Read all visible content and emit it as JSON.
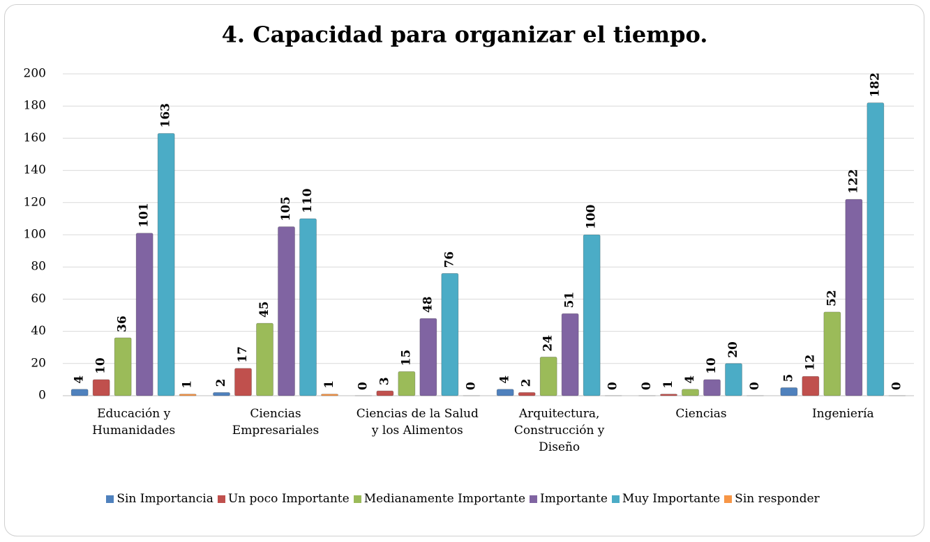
{
  "chart_data": {
    "type": "bar",
    "title": "4. Capacidad para organizar el tiempo.",
    "categories": [
      "Educación y Humanidades",
      "Ciencias Empresariales",
      "Ciencias de la Salud y los Alimentos",
      "Arquitectura, Construcción y Diseño",
      "Ciencias",
      "Ingeniería"
    ],
    "series": [
      {
        "name": "Sin Importancia",
        "color": "#4f81bd",
        "values": [
          4,
          2,
          0,
          4,
          0,
          5
        ]
      },
      {
        "name": "Un poco Importante",
        "color": "#c0504d",
        "values": [
          10,
          17,
          3,
          2,
          1,
          12
        ]
      },
      {
        "name": "Medianamente Importante",
        "color": "#9bbb59",
        "values": [
          36,
          45,
          15,
          24,
          4,
          52
        ]
      },
      {
        "name": "Importante",
        "color": "#8064a2",
        "values": [
          101,
          105,
          48,
          51,
          10,
          122
        ]
      },
      {
        "name": "Muy Importante",
        "color": "#4bacc6",
        "values": [
          163,
          110,
          76,
          100,
          20,
          182
        ]
      },
      {
        "name": "Sin responder",
        "color": "#f79646",
        "values": [
          1,
          1,
          0,
          0,
          0,
          0
        ]
      }
    ],
    "ylim": [
      0,
      200
    ],
    "yticks": [
      0,
      20,
      40,
      60,
      80,
      100,
      120,
      140,
      160,
      180,
      200
    ],
    "grid": true,
    "legend": "bottom"
  }
}
